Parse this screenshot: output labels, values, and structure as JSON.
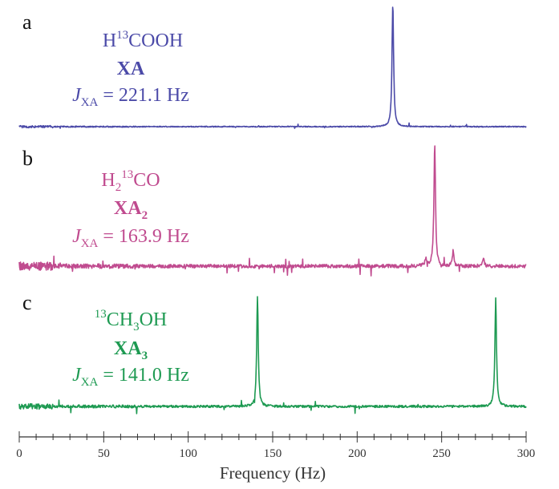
{
  "chart_data": {
    "type": "line",
    "xlabel": "Frequency (Hz)",
    "xlim": [
      0,
      300
    ],
    "xticks": [
      "0",
      "50",
      "100",
      "150",
      "200",
      "250",
      "300"
    ],
    "minor_tick_step": 10,
    "grid": false,
    "panels": [
      {
        "label": "a",
        "compound": [
          "H",
          "13",
          "COOH"
        ],
        "spin_system": [
          "XA",
          ""
        ],
        "coupling": [
          "J",
          "XA",
          " = 221.1 Hz"
        ],
        "color": "#4b4aa8",
        "baseline_noise": "low",
        "peaks": [
          {
            "x": 221.1,
            "height": 1.0
          }
        ]
      },
      {
        "label": "b",
        "compound": [
          "H",
          "2",
          "13",
          "CO"
        ],
        "spin_system": [
          "XA",
          "2"
        ],
        "coupling": [
          "J",
          "XA",
          " = 163.9 Hz"
        ],
        "color": "#c04b8f",
        "baseline_noise": "high",
        "peaks": [
          {
            "x": 245.9,
            "height": 1.0
          },
          {
            "x": 240.5,
            "height": 0.06
          },
          {
            "x": 256.8,
            "height": 0.12
          },
          {
            "x": 274.8,
            "height": 0.06
          }
        ]
      },
      {
        "label": "c",
        "compound": [
          "13",
          "CH",
          "3",
          "OH"
        ],
        "spin_system": [
          "XA",
          "3"
        ],
        "coupling": [
          "J",
          "XA",
          " = 141.0 Hz"
        ],
        "color": "#1e9a52",
        "baseline_noise": "medium",
        "peaks": [
          {
            "x": 141.0,
            "height": 1.0
          },
          {
            "x": 282.0,
            "height": 1.0
          }
        ]
      }
    ]
  }
}
